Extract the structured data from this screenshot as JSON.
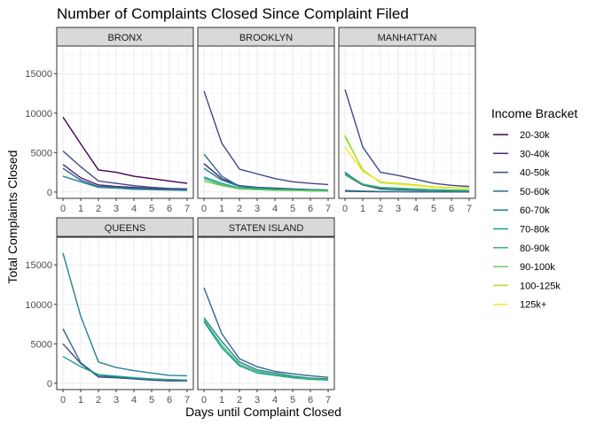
{
  "chart_data": {
    "type": "line",
    "title": "Number of Complaints Closed Since Complaint Filed",
    "xlabel": "Days until Complaint Closed",
    "ylabel": "Total Complaints Closed",
    "x": [
      0,
      1,
      2,
      3,
      4,
      5,
      6,
      7
    ],
    "xticks": [
      "0",
      "1",
      "2",
      "3",
      "4",
      "5",
      "6",
      "7"
    ],
    "ylim": [
      -800,
      18500
    ],
    "yticks": [
      0,
      5000,
      10000,
      15000
    ],
    "ytick_labels": [
      "0",
      "5000",
      "10000",
      "15000"
    ],
    "grid": true,
    "legend": {
      "title": "Income Bracket",
      "placement": "right",
      "entries": [
        "20-30k",
        "30-40k",
        "40-50k",
        "50-60k",
        "60-70k",
        "70-80k",
        "80-90k",
        "90-100k",
        "100-125k",
        "125k+"
      ]
    },
    "colors": {
      "20-30k": "#440154",
      "30-40k": "#482878",
      "40-50k": "#3e4989",
      "50-60k": "#31688e",
      "60-70k": "#26828e",
      "70-80k": "#1f9e89",
      "80-90k": "#35b779",
      "90-100k": "#6ece58",
      "100-125k": "#b5de2b",
      "125k+": "#fde725"
    },
    "panels": [
      {
        "name": "BRONX",
        "series": [
          {
            "name": "20-30k",
            "values": [
              9500,
              6100,
              2800,
              2500,
              2000,
              1700,
              1400,
              1100
            ]
          },
          {
            "name": "30-40k",
            "values": [
              3500,
              1800,
              900,
              700,
              600,
              450,
              350,
              300
            ]
          },
          {
            "name": "40-50k",
            "values": [
              5200,
              3200,
              1400,
              1100,
              800,
              600,
              450,
              400
            ]
          },
          {
            "name": "50-60k",
            "values": [
              3000,
              1500,
              700,
              600,
              450,
              350,
              300,
              250
            ]
          },
          {
            "name": "60-70k",
            "values": [
              2000,
              1300,
              600,
              500,
              350,
              300,
              250,
              200
            ]
          }
        ]
      },
      {
        "name": "BROOKLYN",
        "series": [
          {
            "name": "40-50k",
            "values": [
              12800,
              6200,
              2900,
              2300,
              1700,
              1300,
              1100,
              950
            ]
          },
          {
            "name": "30-40k",
            "values": [
              3600,
              1700,
              800,
              600,
              500,
              400,
              300,
              250
            ]
          },
          {
            "name": "50-60k",
            "values": [
              4800,
              2000,
              700,
              550,
              450,
              350,
              300,
              250
            ]
          },
          {
            "name": "60-70k",
            "values": [
              3000,
              1500,
              700,
              500,
              400,
              350,
              300,
              250
            ]
          },
          {
            "name": "70-80k",
            "values": [
              1900,
              1100,
              500,
              400,
              300,
              250,
              200,
              200
            ]
          },
          {
            "name": "80-90k",
            "values": [
              1700,
              900,
              400,
              300,
              250,
              200,
              150,
              150
            ]
          },
          {
            "name": "90-100k",
            "values": [
              1400,
              800,
              400,
              300,
              200,
              200,
              150,
              100
            ]
          }
        ]
      },
      {
        "name": "MANHATTAN",
        "series": [
          {
            "name": "20-30k",
            "values": [
              2200,
              900,
              400,
              300,
              250,
              200,
              150,
              150
            ]
          },
          {
            "name": "30-40k",
            "values": [
              100,
              60,
              40,
              30,
              20,
              20,
              15,
              15
            ]
          },
          {
            "name": "40-50k",
            "values": [
              13000,
              5700,
              2500,
              2100,
              1600,
              1100,
              850,
              700
            ]
          },
          {
            "name": "50-60k",
            "values": [
              2500,
              900,
              500,
              350,
              300,
              250,
              200,
              150
            ]
          },
          {
            "name": "60-70k",
            "values": [
              200,
              120,
              80,
              60,
              50,
              40,
              30,
              30
            ]
          },
          {
            "name": "70-80k",
            "values": [
              2400,
              1000,
              500,
              400,
              300,
              250,
              200,
              200
            ]
          },
          {
            "name": "80-90k",
            "values": [
              2200,
              1000,
              600,
              500,
              400,
              300,
              250,
              200
            ]
          },
          {
            "name": "90-100k",
            "values": [
              7000,
              2800,
              1200,
              1000,
              800,
              600,
              500,
              450
            ]
          },
          {
            "name": "100-125k",
            "values": [
              7200,
              2700,
              1300,
              1100,
              900,
              650,
              550,
              500
            ]
          },
          {
            "name": "125k+",
            "values": [
              5700,
              2600,
              1300,
              1000,
              800,
              600,
              500,
              450
            ]
          }
        ]
      },
      {
        "name": "QUEENS",
        "series": [
          {
            "name": "40-50k",
            "values": [
              5000,
              2500,
              800,
              700,
              550,
              400,
              300,
              300
            ]
          },
          {
            "name": "50-60k",
            "values": [
              6900,
              2600,
              900,
              800,
              650,
              550,
              450,
              400
            ]
          },
          {
            "name": "60-70k",
            "values": [
              16500,
              8500,
              2700,
              2000,
              1600,
              1300,
              1000,
              950
            ]
          },
          {
            "name": "70-80k",
            "values": [
              3400,
              2100,
              1100,
              900,
              700,
              550,
              450,
              400
            ]
          }
        ]
      },
      {
        "name": "STATEN ISLAND",
        "series": [
          {
            "name": "50-60k",
            "values": [
              12100,
              6300,
              3100,
              2100,
              1500,
              1200,
              950,
              750
            ]
          },
          {
            "name": "60-70k",
            "values": [
              8300,
              5300,
              2700,
              1700,
              1300,
              900,
              650,
              550
            ]
          },
          {
            "name": "70-80k",
            "values": [
              7800,
              4500,
              2200,
              1300,
              1000,
              700,
              500,
              400
            ]
          },
          {
            "name": "80-90k",
            "values": [
              8000,
              4800,
              2400,
              1500,
              1100,
              800,
              550,
              450
            ]
          }
        ]
      }
    ]
  }
}
